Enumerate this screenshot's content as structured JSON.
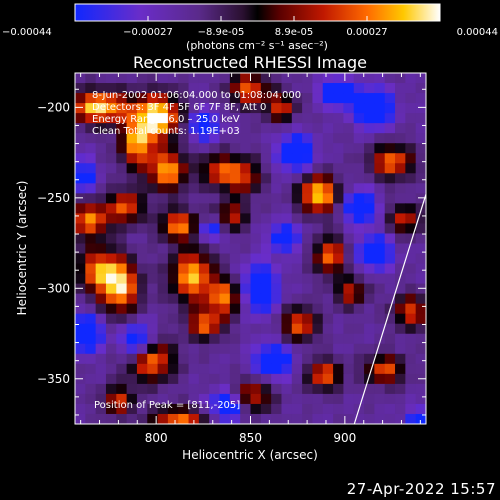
{
  "chart_data": {
    "type": "heatmap",
    "title": "Reconstructed RHESSI Image",
    "xlabel": "Heliocentric X (arcsec)",
    "ylabel": "Heliocentric Y (arcsec)",
    "xlim": [
      757,
      943
    ],
    "ylim": [
      -375,
      -181
    ],
    "x_ticks": [
      800,
      850,
      900
    ],
    "y_ticks": [
      -200,
      -250,
      -300,
      -350
    ],
    "colorbar": {
      "range": [
        -0.00044,
        0.00044
      ],
      "ticks": [
        "-0.00044",
        "-0.00027",
        "-8.9e-05",
        "8.9e-05",
        "0.00027",
        "0.00044"
      ],
      "unit_label": "(photons cm⁻² s⁻¹ asec⁻²)"
    },
    "annotations": [
      "8-Jun-2002 01:06:04.000 to 01:08:04.000",
      "Detectors: 3F 4F 5F 6F 7F 8F, Att 0",
      "Energy Range: 6.0 – 25.0 keV",
      "Clean    Total counts: 1.19E+03"
    ],
    "peak_label": "Position of Peak = [811,-205]",
    "peak": [
      811,
      -205
    ],
    "limb_line": [
      [
        905,
        -375
      ],
      [
        943,
        -248
      ]
    ],
    "grid_columns": 34,
    "grid_rows": 35,
    "blobs": [
      [
        770,
        -200,
        16,
        9,
        0.9
      ],
      [
        765,
        -262,
        10,
        10,
        0.65
      ],
      [
        770,
        -290,
        12,
        12,
        0.6
      ],
      [
        781,
        -300,
        10,
        14,
        0.75
      ],
      [
        790,
        -220,
        9,
        13,
        0.7
      ],
      [
        784,
        -255,
        9,
        9,
        0.55
      ],
      [
        801,
        -205,
        12,
        12,
        1.0
      ],
      [
        806,
        -235,
        10,
        11,
        0.75
      ],
      [
        812,
        -265,
        10,
        8,
        0.65
      ],
      [
        819,
        -293,
        11,
        14,
        0.8
      ],
      [
        826,
        -320,
        9,
        8,
        0.55
      ],
      [
        833,
        -235,
        9,
        9,
        0.45
      ],
      [
        836,
        -305,
        9,
        10,
        0.6
      ],
      [
        840,
        -260,
        8,
        8,
        0.35
      ],
      [
        849,
        -190,
        10,
        9,
        0.55
      ],
      [
        846,
        -238,
        9,
        10,
        0.45
      ],
      [
        866,
        -200,
        8,
        8,
        0.4
      ],
      [
        886,
        -248,
        10,
        10,
        0.9
      ],
      [
        892,
        -282,
        8,
        10,
        0.6
      ],
      [
        876,
        -320,
        9,
        9,
        0.55
      ],
      [
        889,
        -348,
        9,
        8,
        0.55
      ],
      [
        903,
        -302,
        8,
        8,
        0.35
      ],
      [
        925,
        -230,
        11,
        9,
        0.6
      ],
      [
        932,
        -262,
        8,
        8,
        0.4
      ],
      [
        921,
        -345,
        10,
        8,
        0.5
      ],
      [
        935,
        -313,
        9,
        9,
        0.45
      ],
      [
        797,
        -340,
        12,
        11,
        0.7
      ],
      [
        812,
        -372,
        14,
        6,
        0.6
      ],
      [
        851,
        -360,
        10,
        9,
        0.45
      ],
      [
        780,
        -362,
        8,
        8,
        0.4
      ],
      [
        762,
        -325,
        9,
        9,
        -0.85
      ],
      [
        790,
        -330,
        8,
        10,
        -0.55
      ],
      [
        825,
        -210,
        8,
        8,
        -0.45
      ],
      [
        855,
        -300,
        9,
        13,
        -0.65
      ],
      [
        862,
        -340,
        10,
        9,
        -0.55
      ],
      [
        874,
        -225,
        9,
        10,
        -0.6
      ],
      [
        896,
        -192,
        8,
        7,
        -0.85
      ],
      [
        915,
        -200,
        10,
        10,
        -0.75
      ],
      [
        908,
        -255,
        8,
        9,
        -0.55
      ],
      [
        916,
        -280,
        9,
        9,
        -0.55
      ],
      [
        838,
        -365,
        10,
        8,
        -0.45
      ],
      [
        868,
        -272,
        8,
        8,
        -0.4
      ],
      [
        940,
        -375,
        8,
        8,
        -0.4
      ],
      [
        829,
        -268,
        6,
        6,
        -0.35
      ],
      [
        762,
        -238,
        6,
        10,
        -0.3
      ]
    ]
  }
}
